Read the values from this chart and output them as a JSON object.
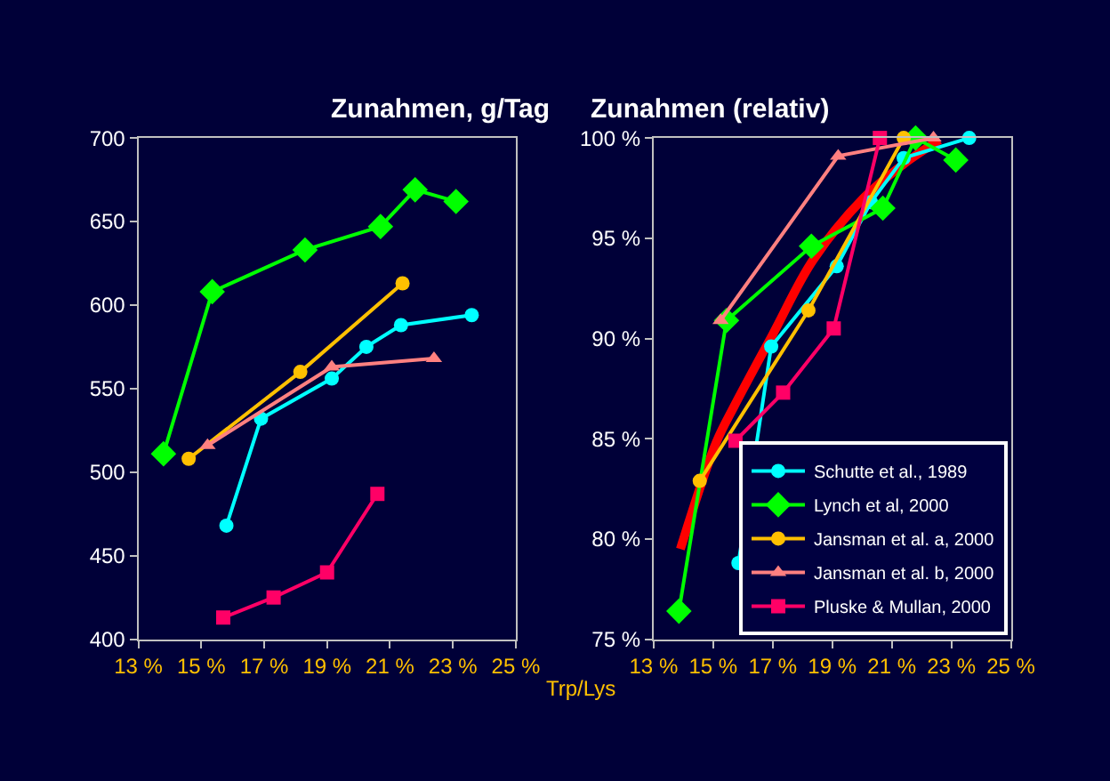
{
  "chart_data": [
    {
      "type": "line",
      "title": "Zunahmen, g/Tag",
      "xlabel": "Trp/Lys",
      "legend": false,
      "grid": false,
      "xlim": [
        13,
        25
      ],
      "xticks": [
        {
          "value": 13,
          "label": "13 %"
        },
        {
          "value": 15,
          "label": "15 %"
        },
        {
          "value": 17,
          "label": "17 %"
        },
        {
          "value": 19,
          "label": "19 %"
        },
        {
          "value": 21,
          "label": "21 %"
        },
        {
          "value": 23,
          "label": "23 %"
        },
        {
          "value": 25,
          "label": "25 %"
        }
      ],
      "ylim": [
        400,
        700
      ],
      "yticks": [
        400,
        450,
        500,
        550,
        600,
        650,
        700
      ],
      "series": [
        {
          "color": "#00ffff",
          "marker": "circle",
          "x": [
            15.8,
            16.9,
            19.15,
            20.25,
            21.35,
            23.6
          ],
          "values": [
            468,
            532,
            556,
            575,
            588,
            594
          ]
        },
        {
          "color": "#00ff00",
          "marker": "diamond",
          "x": [
            13.8,
            15.35,
            18.3,
            20.7,
            21.8,
            23.1
          ],
          "values": [
            511,
            608,
            633,
            647,
            669,
            662
          ]
        },
        {
          "color": "#ffc000",
          "marker": "circle",
          "x": [
            14.6,
            18.15,
            21.4
          ],
          "values": [
            508,
            560,
            613
          ]
        },
        {
          "color": "#ff8080",
          "marker": "triangle",
          "x": [
            15.2,
            19.15,
            22.4
          ],
          "values": [
            516,
            563,
            568
          ]
        },
        {
          "color": "#ff0066",
          "marker": "square",
          "x": [
            15.7,
            17.3,
            19.0,
            20.6
          ],
          "values": [
            413,
            425,
            440,
            487
          ]
        }
      ]
    },
    {
      "type": "line",
      "title": "Zunahmen (relativ)",
      "legend": "bottom right",
      "grid": false,
      "xlim": [
        13,
        25
      ],
      "xticks": [
        {
          "value": 13,
          "label": "13 %"
        },
        {
          "value": 15,
          "label": "15 %"
        },
        {
          "value": 17,
          "label": "17 %"
        },
        {
          "value": 19,
          "label": "19 %"
        },
        {
          "value": 21,
          "label": "21 %"
        },
        {
          "value": 23,
          "label": "23 %"
        },
        {
          "value": 25,
          "label": "25 %"
        }
      ],
      "ylim": [
        75,
        100
      ],
      "yticks": [
        {
          "value": 75,
          "label": "75 %"
        },
        {
          "value": 80,
          "label": "80 %"
        },
        {
          "value": 85,
          "label": "85 %"
        },
        {
          "value": 90,
          "label": "90 %"
        },
        {
          "value": 95,
          "label": "95 %"
        },
        {
          "value": 100,
          "label": "100 %"
        }
      ],
      "series": [
        {
          "color": "#ff0000",
          "marker": "none",
          "x": [
            13.9,
            15.1,
            15.7,
            17.0,
            18.35,
            20.05,
            21.4,
            22.6
          ],
          "values": [
            79.5,
            84.8,
            86.6,
            90.2,
            93.9,
            97.0,
            98.7,
            99.9
          ]
        },
        {
          "name": "Schutte et al., 1989",
          "color": "#00ffff",
          "marker": "circle",
          "x": [
            15.85,
            16.95,
            19.15,
            20.3,
            21.4,
            23.6
          ],
          "values": [
            78.8,
            89.6,
            93.6,
            96.8,
            99.0,
            100
          ]
        },
        {
          "name": "Lynch et al, 2000",
          "color": "#00ff00",
          "marker": "diamond",
          "x": [
            13.85,
            15.45,
            18.3,
            20.7,
            21.8,
            23.15
          ],
          "values": [
            76.4,
            90.9,
            94.6,
            96.5,
            100,
            98.9
          ]
        },
        {
          "name": "Jansman et al. a, 2000",
          "color": "#ffc000",
          "marker": "circle",
          "x": [
            14.55,
            18.2,
            21.4
          ],
          "values": [
            82.9,
            91.4,
            100
          ]
        },
        {
          "name": "Jansman et al. b, 2000",
          "color": "#ff8080",
          "marker": "triangle",
          "x": [
            15.25,
            19.2,
            22.4
          ],
          "values": [
            90.9,
            99.1,
            100
          ]
        },
        {
          "name": "Pluske & Mullan, 2000",
          "color": "#ff0066",
          "marker": "square",
          "x": [
            15.75,
            17.35,
            19.05,
            20.6
          ],
          "values": [
            84.9,
            87.3,
            90.5,
            100
          ]
        }
      ]
    }
  ]
}
